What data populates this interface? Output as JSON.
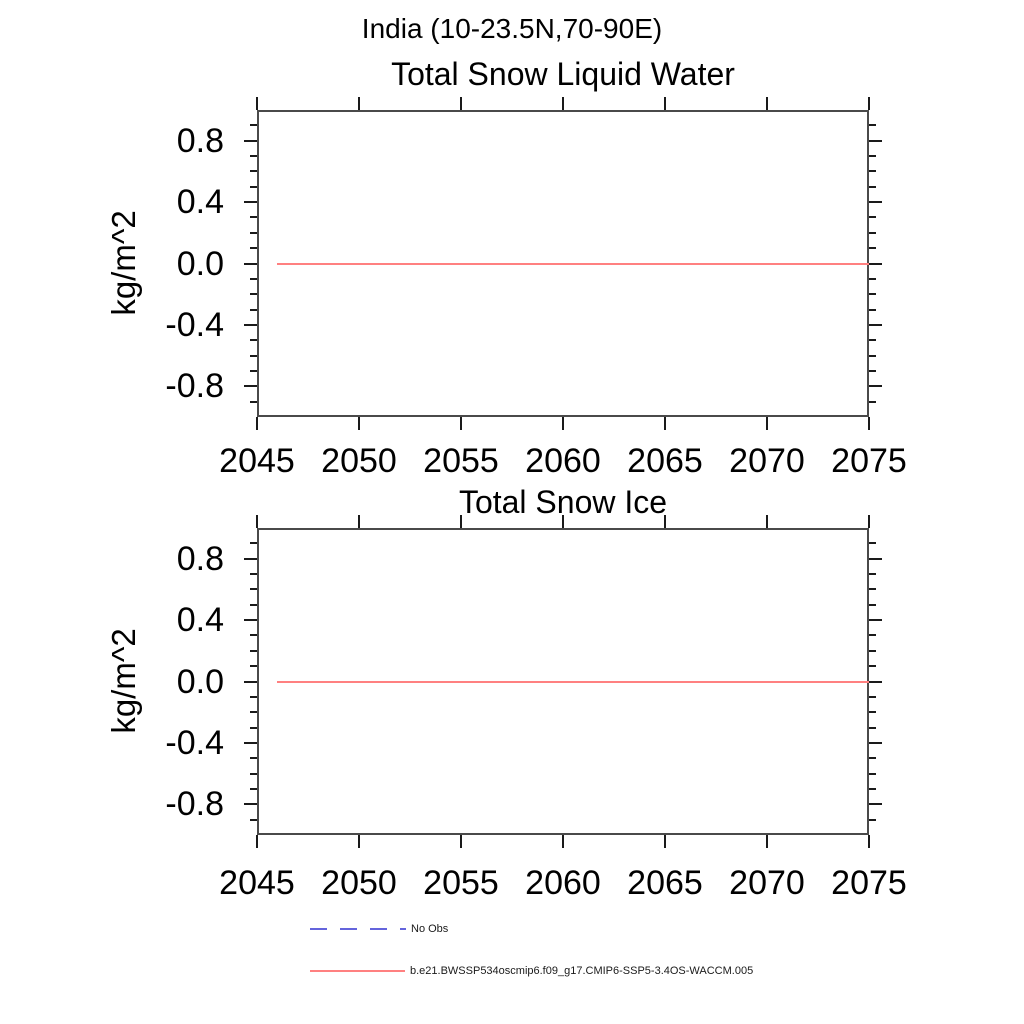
{
  "header": {
    "title": "India (10-23.5N,70-90E)"
  },
  "chart_data": [
    {
      "type": "line",
      "title": "Total Snow Liquid Water",
      "ylabel": "kg/m^2",
      "xlabel": "",
      "xlim": [
        2045,
        2075
      ],
      "ylim": [
        -1.0,
        1.0
      ],
      "xticks": [
        2045,
        2050,
        2055,
        2060,
        2065,
        2070,
        2075
      ],
      "yticks": [
        0.8,
        0.4,
        0.0,
        -0.4,
        -0.8
      ],
      "ytick_labels": [
        "0.8",
        "0.4",
        "0.0",
        "-0.4",
        "-0.8"
      ],
      "yminor_step": 0.1,
      "grid": false,
      "legend_position": "bottom",
      "series": [
        {
          "name": "b.e21.BWSSP534oscmip6.f09_g17.CMIP6-SSP5-3.4OS-WACCM.005",
          "color": "#ff8080",
          "line_style": "solid",
          "line_width": 2,
          "x": [
            2046,
            2075
          ],
          "y": [
            0.0,
            0.0
          ]
        }
      ]
    },
    {
      "type": "line",
      "title": "Total Snow Ice",
      "ylabel": "kg/m^2",
      "xlabel": "",
      "xlim": [
        2045,
        2075
      ],
      "ylim": [
        -1.0,
        1.0
      ],
      "xticks": [
        2045,
        2050,
        2055,
        2060,
        2065,
        2070,
        2075
      ],
      "yticks": [
        0.8,
        0.4,
        0.0,
        -0.4,
        -0.8
      ],
      "ytick_labels": [
        "0.8",
        "0.4",
        "0.0",
        "-0.4",
        "-0.8"
      ],
      "yminor_step": 0.1,
      "grid": false,
      "legend_position": "bottom",
      "series": [
        {
          "name": "b.e21.BWSSP534oscmip6.f09_g17.CMIP6-SSP5-3.4OS-WACCM.005",
          "color": "#ff8080",
          "line_style": "solid",
          "line_width": 2,
          "x": [
            2046,
            2075
          ],
          "y": [
            0.0,
            0.0
          ]
        }
      ]
    }
  ],
  "legend": {
    "entries": [
      {
        "label": "No Obs",
        "color": "#6464dc",
        "line_style": "dashed"
      },
      {
        "label": "b.e21.BWSSP534oscmip6.f09_g17.CMIP6-SSP5-3.4OS-WACCM.005",
        "color": "#ff8080",
        "line_style": "solid"
      }
    ]
  }
}
